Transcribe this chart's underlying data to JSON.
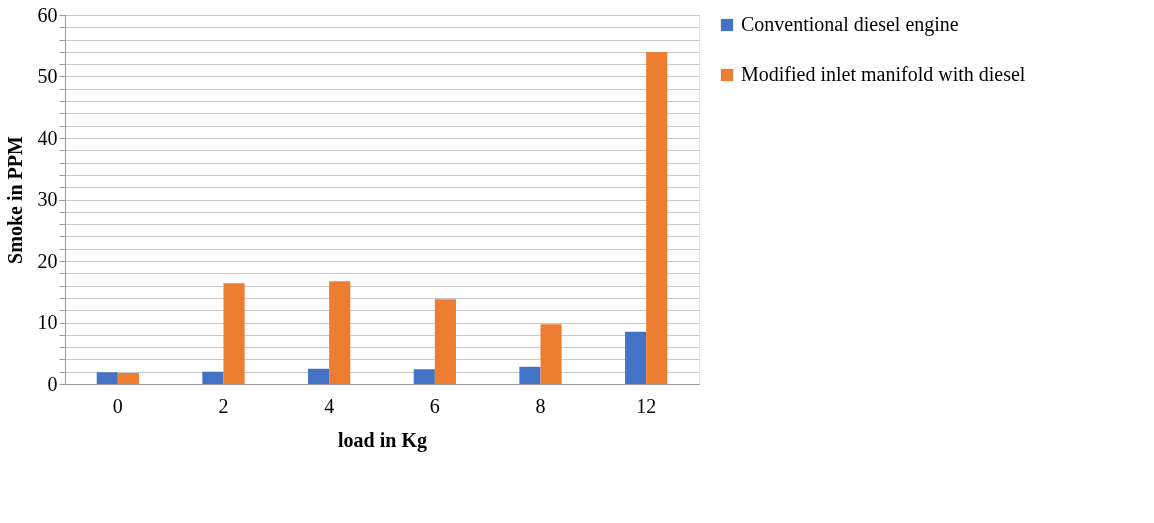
{
  "chart_data": {
    "type": "bar",
    "xlabel": "load in Kg",
    "ylabel": "Smoke in PPM",
    "categories": [
      "0",
      "2",
      "4",
      "6",
      "8",
      "12"
    ],
    "series": [
      {
        "name": "Conventional diesel engine",
        "color": "#4472c4",
        "values": [
          1.9,
          2.0,
          2.5,
          2.4,
          2.8,
          8.5
        ]
      },
      {
        "name": "Modified inlet manifold with diesel",
        "color": "#ed7d31",
        "values": [
          1.8,
          16.4,
          16.7,
          13.8,
          9.7,
          54
        ]
      }
    ],
    "ylim": [
      0,
      60
    ],
    "yticks": [
      0,
      {
        "value": 2,
        "label": null
      },
      {
        "value": 4,
        "label": null
      },
      {
        "value": 6,
        "label": null
      },
      {
        "value": 8,
        "label": null
      },
      10,
      {
        "value": 12,
        "label": null
      },
      {
        "value": 14,
        "label": null
      },
      {
        "value": 16,
        "label": null
      },
      {
        "value": 18,
        "label": null
      },
      20,
      {
        "value": 22,
        "label": null
      },
      {
        "value": 24,
        "label": null
      },
      {
        "value": 26,
        "label": null
      },
      {
        "value": 28,
        "label": null
      },
      30,
      {
        "value": 32,
        "label": null
      },
      {
        "value": 34,
        "label": null
      },
      {
        "value": 36,
        "label": null
      },
      {
        "value": 38,
        "label": null
      },
      40,
      {
        "value": 42,
        "label": null
      },
      {
        "value": 44,
        "label": null
      },
      {
        "value": 46,
        "label": null
      },
      {
        "value": 48,
        "label": null
      },
      50,
      {
        "value": 52,
        "label": null
      },
      {
        "value": 54,
        "label": null
      },
      {
        "value": 56,
        "label": null
      },
      {
        "value": 58,
        "label": null
      },
      60
    ],
    "grid": "y",
    "legend": "right"
  }
}
